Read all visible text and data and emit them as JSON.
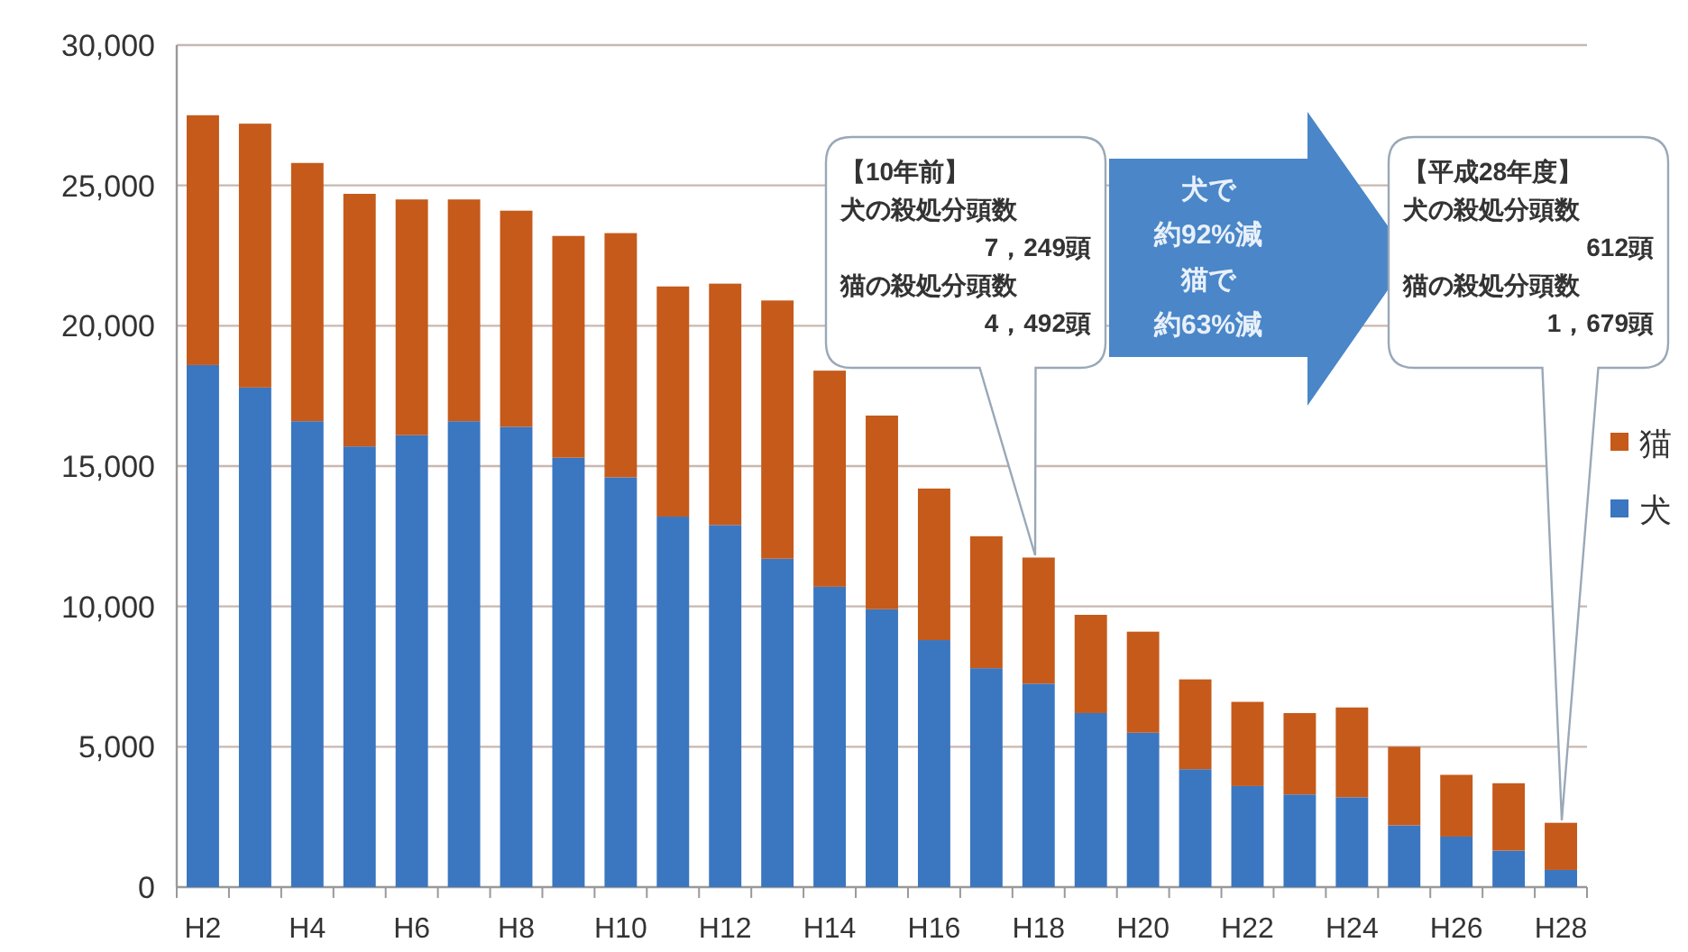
{
  "chart_data": {
    "type": "bar",
    "stacked": true,
    "categories": [
      "H2",
      null,
      "H4",
      null,
      "H6",
      null,
      "H8",
      null,
      "H10",
      null,
      "H12",
      null,
      "H14",
      null,
      "H16",
      null,
      "H18",
      null,
      "H20",
      null,
      "H22",
      null,
      "H24",
      null,
      "H26",
      null,
      "H28"
    ],
    "series": [
      {
        "name": "犬",
        "color": "#3b76c0",
        "values": [
          18600,
          17800,
          16600,
          15700,
          16100,
          16600,
          16400,
          15300,
          14600,
          13200,
          12900,
          11700,
          10700,
          9900,
          8800,
          7800,
          7249,
          6200,
          5500,
          4200,
          3600,
          3300,
          3200,
          2200,
          1800,
          1300,
          612
        ]
      },
      {
        "name": "猫",
        "color": "#c55a1b",
        "values": [
          8900,
          9400,
          9200,
          9000,
          8400,
          7900,
          7700,
          7900,
          8700,
          8200,
          8600,
          9200,
          7700,
          6900,
          5400,
          4700,
          4492,
          3500,
          3600,
          3200,
          3000,
          2900,
          3200,
          2800,
          2200,
          2400,
          1679
        ]
      }
    ],
    "ylim": [
      0,
      30000
    ],
    "yticks": [
      {
        "value": 0,
        "label": "0"
      },
      {
        "value": 5000,
        "label": "5,000"
      },
      {
        "value": 10000,
        "label": "10,000"
      },
      {
        "value": 15000,
        "label": "15,000"
      },
      {
        "value": 20000,
        "label": "20,000"
      },
      {
        "value": 25000,
        "label": "25,000"
      },
      {
        "value": 30000,
        "label": "30,000"
      }
    ],
    "grid": "y",
    "legend": "right",
    "annotations": [
      "【10年前】",
      "犬の殺処分頭数",
      "7，249頭",
      "猫の殺処分頭数",
      "4，492頭",
      "犬で",
      "約92%減",
      "猫で",
      "約63%減",
      "【平成28年度】",
      "犬の殺処分頭数",
      "612頭",
      "猫の殺処分頭数",
      "1，679頭"
    ]
  }
}
